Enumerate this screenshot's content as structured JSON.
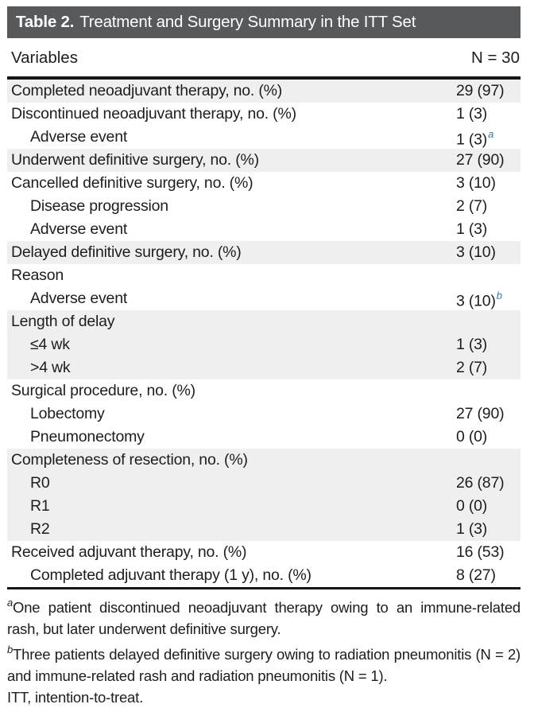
{
  "title": {
    "label": "Table 2.",
    "text": "Treatment and Surgery Summary in the ITT Set"
  },
  "header": {
    "variables": "Variables",
    "n": "N = 30"
  },
  "rows": [
    {
      "label": "Completed neoadjuvant therapy, no. (%)",
      "value": "29 (97)",
      "sup": "",
      "indent": false,
      "shaded": true
    },
    {
      "label": "Discontinued neoadjuvant therapy, no. (%)",
      "value": "1 (3)",
      "sup": "",
      "indent": false,
      "shaded": false
    },
    {
      "label": "Adverse event",
      "value": "1 (3)",
      "sup": "a",
      "indent": true,
      "shaded": false
    },
    {
      "label": "Underwent definitive surgery, no. (%)",
      "value": "27 (90)",
      "sup": "",
      "indent": false,
      "shaded": true
    },
    {
      "label": "Cancelled definitive surgery, no. (%)",
      "value": "3 (10)",
      "sup": "",
      "indent": false,
      "shaded": false
    },
    {
      "label": "Disease progression",
      "value": "2 (7)",
      "sup": "",
      "indent": true,
      "shaded": false
    },
    {
      "label": "Adverse event",
      "value": "1 (3)",
      "sup": "",
      "indent": true,
      "shaded": false
    },
    {
      "label": "Delayed definitive surgery, no. (%)",
      "value": "3 (10)",
      "sup": "",
      "indent": false,
      "shaded": true
    },
    {
      "label": "Reason",
      "value": "",
      "sup": "",
      "indent": false,
      "shaded": false
    },
    {
      "label": "Adverse event",
      "value": "3 (10)",
      "sup": "b",
      "indent": true,
      "shaded": false
    },
    {
      "label": "Length of delay",
      "value": "",
      "sup": "",
      "indent": false,
      "shaded": true
    },
    {
      "label": "≤4 wk",
      "value": "1 (3)",
      "sup": "",
      "indent": true,
      "shaded": true
    },
    {
      "label": ">4 wk",
      "value": "2 (7)",
      "sup": "",
      "indent": true,
      "shaded": true
    },
    {
      "label": "Surgical procedure, no. (%)",
      "value": "",
      "sup": "",
      "indent": false,
      "shaded": false
    },
    {
      "label": "Lobectomy",
      "value": "27 (90)",
      "sup": "",
      "indent": true,
      "shaded": false
    },
    {
      "label": "Pneumonectomy",
      "value": "0 (0)",
      "sup": "",
      "indent": true,
      "shaded": false
    },
    {
      "label": "Completeness of resection, no. (%)",
      "value": "",
      "sup": "",
      "indent": false,
      "shaded": true
    },
    {
      "label": "R0",
      "value": "26 (87)",
      "sup": "",
      "indent": true,
      "shaded": true
    },
    {
      "label": "R1",
      "value": "0 (0)",
      "sup": "",
      "indent": true,
      "shaded": true
    },
    {
      "label": "R2",
      "value": "1 (3)",
      "sup": "",
      "indent": true,
      "shaded": true
    },
    {
      "label": "Received adjuvant therapy, no. (%)",
      "value": "16 (53)",
      "sup": "",
      "indent": false,
      "shaded": false
    },
    {
      "label": "Completed adjuvant therapy (1 y), no. (%)",
      "value": "8 (27)",
      "sup": "",
      "indent": true,
      "shaded": false
    }
  ],
  "footnotes": [
    {
      "sup": "a",
      "text": "One patient discontinued neoadjuvant therapy owing to an immune-related rash, but later underwent definitive surgery."
    },
    {
      "sup": "b",
      "text": "Three patients delayed definitive surgery owing to radiation pneumonitis (N = 2) and immune-related rash and radiation pneumonitis (N = 1)."
    },
    {
      "sup": "",
      "text": "ITT, intention-to-treat."
    }
  ],
  "colors": {
    "title_bar_bg": "#58595b",
    "row_shade": "#efefef",
    "superscript_accent": "#3379b5",
    "rule": "#161616"
  }
}
